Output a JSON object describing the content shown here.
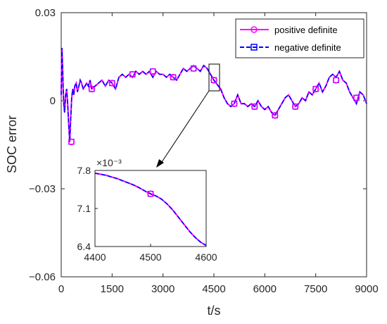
{
  "chart_data": {
    "type": "line",
    "xlabel": "t/s",
    "ylabel": "SOC error",
    "xlim": [
      0,
      9000
    ],
    "ylim": [
      -0.06,
      0.03
    ],
    "xticks": [
      "0",
      "1500",
      "3000",
      "4500",
      "6000",
      "7500",
      "9000"
    ],
    "yticks": [
      "0.03",
      "0",
      "−0.03",
      "−0.06"
    ],
    "grid": false,
    "legend_position": "top-right",
    "series": [
      {
        "name": "positive definite",
        "color": "#ff00ff",
        "style": "solid",
        "marker": "circle"
      },
      {
        "name": "negative definite",
        "color": "#0000ff",
        "style": "dashed",
        "marker": "square"
      }
    ],
    "x": [
      0,
      20,
      40,
      60,
      80,
      100,
      130,
      160,
      190,
      220,
      250,
      280,
      310,
      340,
      370,
      400,
      440,
      480,
      520,
      560,
      600,
      650,
      700,
      750,
      800,
      850,
      900,
      1000,
      1100,
      1200,
      1300,
      1400,
      1500,
      1600,
      1700,
      1800,
      1900,
      2000,
      2100,
      2200,
      2300,
      2400,
      2500,
      2600,
      2700,
      2800,
      2900,
      3000,
      3100,
      3200,
      3300,
      3400,
      3500,
      3600,
      3700,
      3800,
      3900,
      4000,
      4100,
      4200,
      4300,
      4400,
      4500,
      4600,
      4700,
      4800,
      4900,
      5000,
      5100,
      5200,
      5300,
      5400,
      5500,
      5600,
      5700,
      5800,
      5900,
      6000,
      6100,
      6200,
      6300,
      6400,
      6500,
      6600,
      6700,
      6800,
      6900,
      7000,
      7100,
      7200,
      7300,
      7400,
      7500,
      7600,
      7700,
      7800,
      7900,
      8000,
      8100,
      8200,
      8300,
      8400,
      8500,
      8600,
      8700,
      8800,
      8900,
      9000
    ],
    "y": [
      0.002,
      0.018,
      0.012,
      0.003,
      -0.002,
      -0.004,
      0.002,
      0.004,
      -0.001,
      -0.008,
      -0.014,
      -0.006,
      0.001,
      0.004,
      0.002,
      0.005,
      0.006,
      0.003,
      0.005,
      0.007,
      0.006,
      0.004,
      0.005,
      0.006,
      0.005,
      0.007,
      0.004,
      0.005,
      0.006,
      0.007,
      0.005,
      0.007,
      0.006,
      0.004,
      0.008,
      0.009,
      0.008,
      0.009,
      0.008,
      0.01,
      0.009,
      0.01,
      0.009,
      0.01,
      0.008,
      0.01,
      0.009,
      0.009,
      0.008,
      0.009,
      0.008,
      0.007,
      0.009,
      0.011,
      0.01,
      0.011,
      0.012,
      0.011,
      0.01,
      0.012,
      0.011,
      0.009,
      0.007,
      0.0055,
      0.004,
      0.001,
      -0.001,
      -0.002,
      -0.001,
      0.002,
      -0.001,
      -0.001,
      -0.002,
      -0.001,
      -0.002,
      0.0,
      -0.002,
      -0.003,
      -0.002,
      -0.004,
      -0.005,
      -0.003,
      -0.001,
      0.001,
      0.002,
      0.0,
      -0.002,
      -0.001,
      0.001,
      0.0,
      0.003,
      0.002,
      0.004,
      0.006,
      0.003,
      0.005,
      0.008,
      0.009,
      0.008,
      0.01,
      0.007,
      0.006,
      0.003,
      0.001,
      -0.001,
      0.003,
      0.002,
      -0.001
    ],
    "marker_x": [
      300,
      900,
      1500,
      2100,
      2700,
      3300,
      3900,
      4500,
      5100,
      5700,
      6300,
      6900,
      7500,
      8100,
      8700
    ],
    "marker_y": [
      -0.014,
      0.004,
      0.006,
      0.009,
      0.01,
      0.008,
      0.011,
      0.007,
      -0.001,
      -0.002,
      -0.005,
      -0.002,
      0.004,
      0.007,
      0.001
    ],
    "inset": {
      "xlim": [
        4400,
        4600
      ],
      "ylim": [
        0.0064,
        0.0078
      ],
      "xticks": [
        "4400",
        "4500",
        "4600"
      ],
      "yticks": [
        "7.8",
        "7.1",
        "6.4"
      ],
      "scale_label": "×10⁻³",
      "x": [
        4400,
        4410,
        4420,
        4430,
        4440,
        4450,
        4460,
        4470,
        4480,
        4490,
        4500,
        4510,
        4520,
        4530,
        4540,
        4550,
        4560,
        4570,
        4580,
        4590,
        4600
      ],
      "y": [
        0.00775,
        0.00773,
        0.00771,
        0.00768,
        0.00765,
        0.00761,
        0.00757,
        0.00753,
        0.00748,
        0.00742,
        0.00737,
        0.00733,
        0.00727,
        0.00718,
        0.00707,
        0.00694,
        0.00681,
        0.00668,
        0.00657,
        0.00648,
        0.00642
      ],
      "marker_x": [
        4500
      ],
      "marker_y": [
        0.00737
      ]
    }
  }
}
